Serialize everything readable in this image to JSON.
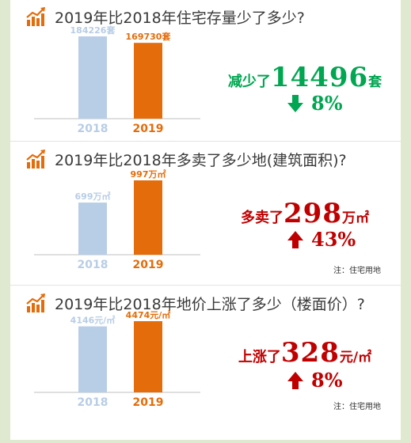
{
  "colors": {
    "bar2018": "#b8cde6",
    "bar2019": "#e46c0a",
    "green": "#00a651",
    "red": "#c00000",
    "axis": "#bfbfbf",
    "title": "#3a3a3a"
  },
  "sections": [
    {
      "title": "2019年比2018年住宅存量少了多少?",
      "big_prefix": "减少了",
      "big_number": "14496",
      "big_unit": "套",
      "direction": "down",
      "percent": "8%",
      "note": ""
    },
    {
      "title": "2019年比2018年多卖了多少地(建筑面积)?",
      "big_prefix": "多卖了",
      "big_number": "298",
      "big_unit": "万㎡",
      "direction": "up",
      "percent": "43%",
      "note": "注：住宅用地"
    },
    {
      "title": "2019年比2018年地价上涨了多少（楼面价）?",
      "big_prefix": "上涨了",
      "big_number": "328",
      "big_unit": "元/㎡",
      "direction": "up",
      "percent": "8%",
      "note": "注：住宅用地"
    }
  ],
  "chart_data": [
    {
      "type": "bar",
      "title": "2019年比2018年住宅存量少了多少?",
      "categories": [
        "2018",
        "2019"
      ],
      "values": [
        184226,
        169730
      ],
      "value_labels": [
        "184226套",
        "169730套"
      ],
      "unit": "套"
    },
    {
      "type": "bar",
      "title": "2019年比2018年多卖了多少地(建筑面积)?",
      "categories": [
        "2018",
        "2019"
      ],
      "values": [
        699,
        997
      ],
      "value_labels": [
        "699万㎡",
        "997万㎡"
      ],
      "unit": "万㎡"
    },
    {
      "type": "bar",
      "title": "2019年比2018年地价上涨了多少（楼面价）?",
      "categories": [
        "2018",
        "2019"
      ],
      "values": [
        4146,
        4474
      ],
      "value_labels": [
        "4146元/㎡",
        "4474元/㎡"
      ],
      "unit": "元/㎡"
    }
  ]
}
